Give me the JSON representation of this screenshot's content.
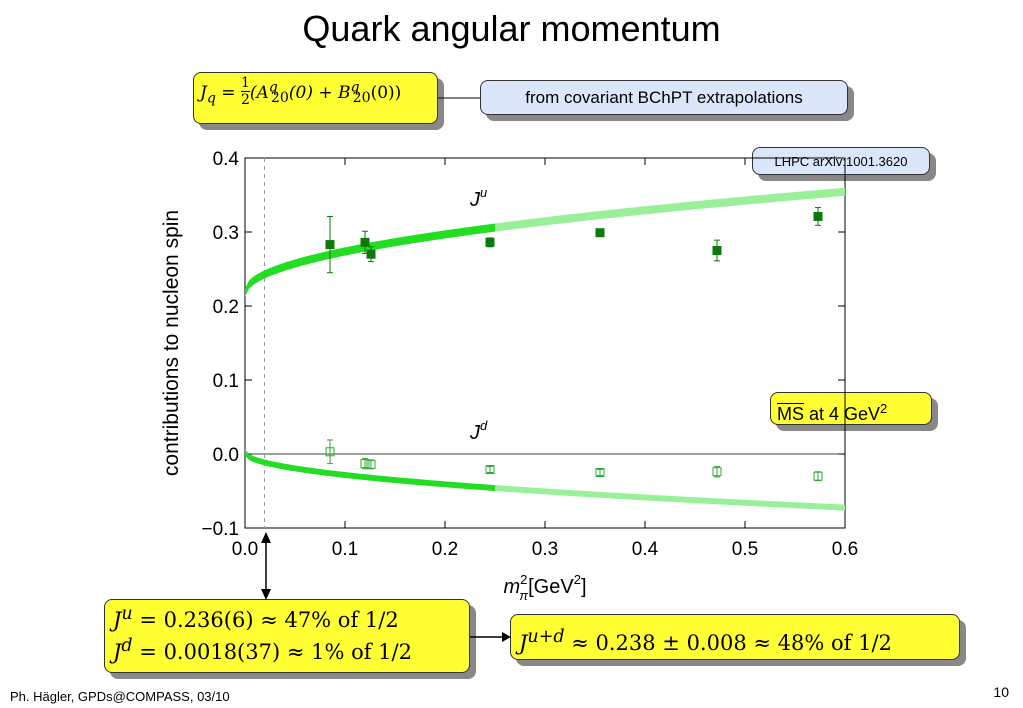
{
  "slide": {
    "title": "Quark angular momentum",
    "footer": "Ph. Hägler, GPDs@COMPASS, 03/10",
    "page_number": "10"
  },
  "boxes": {
    "formula_lhs": "J",
    "formula_sub": "q",
    "formula_eq": " = ",
    "formula_num": "1",
    "formula_den": "2",
    "formula_body": "(A",
    "formula_a_sup": "q",
    "formula_a_sub": "20",
    "formula_mid": "(0) + B",
    "formula_b_sup": "q",
    "formula_b_sub": "20",
    "formula_end": "(0))",
    "covariant": "from covariant BChPT extrapolations",
    "lhpc": "LHPC arXiv:1001.3620",
    "msbar_ms": "MS",
    "msbar_rest": " at 4 GeV",
    "msbar_sup": "2",
    "ju_result_lhs": "J",
    "ju_result_sup": "u",
    "ju_result_rhs": " = 0.236(6) ≈ 47% of 1/2",
    "jd_result_lhs": "J",
    "jd_result_sup": "d",
    "jd_result_rhs": " = 0.0018(37) ≈ 1% of 1/2",
    "jud_lhs": "J",
    "jud_sup": "u+d",
    "jud_rhs": " ≈ 0.238 ± 0.008 ≈ 48% of 1/2"
  },
  "colors": {
    "bright_band": "#22dd22",
    "light_band": "#99f099",
    "filled_marker": "#0a7a0a",
    "open_marker": "#2fa82f",
    "highlight": "#ffff33",
    "info_box": "#dbe6fb"
  },
  "chart_data": {
    "type": "scatter",
    "xlim": [
      0.0,
      0.6
    ],
    "ylim": [
      -0.1,
      0.4
    ],
    "x_ticks": [
      "0.0",
      "0.1",
      "0.2",
      "0.3",
      "0.4",
      "0.5",
      "0.6"
    ],
    "y_ticks": [
      "0.4",
      "0.3",
      "0.2",
      "0.1",
      "0.0",
      "−0.1"
    ],
    "ylabel": "contributions to nucleon spin",
    "xlabel_main": "m",
    "xlabel_sup": "2",
    "xlabel_sub": "π",
    "xlabel_unit": "[GeV",
    "xlabel_unit_sup": "2",
    "xlabel_close": "]",
    "physical_point_x": 0.0195,
    "series": [
      {
        "name": "J",
        "name_sup": "u",
        "marker": "filled-square",
        "points": [
          {
            "x": 0.085,
            "y": 0.283,
            "err": 0.038
          },
          {
            "x": 0.12,
            "y": 0.286,
            "err": 0.015
          },
          {
            "x": 0.126,
            "y": 0.27,
            "err": 0.01
          },
          {
            "x": 0.245,
            "y": 0.286,
            "err": 0.006
          },
          {
            "x": 0.355,
            "y": 0.299,
            "err": 0.005
          },
          {
            "x": 0.472,
            "y": 0.275,
            "err": 0.014
          },
          {
            "x": 0.573,
            "y": 0.321,
            "err": 0.012
          }
        ],
        "band": {
          "start": 0.218,
          "coef": 0.176,
          "half_width": 0.0055,
          "fit_max": 0.25
        }
      },
      {
        "name": "J",
        "name_sup": "d",
        "marker": "open-square",
        "points": [
          {
            "x": 0.085,
            "y": 0.003,
            "err": 0.016
          },
          {
            "x": 0.12,
            "y": -0.013,
            "err": 0.007
          },
          {
            "x": 0.126,
            "y": -0.014,
            "err": 0.006
          },
          {
            "x": 0.245,
            "y": -0.021,
            "err": 0.004
          },
          {
            "x": 0.355,
            "y": -0.025,
            "err": 0.004
          },
          {
            "x": 0.472,
            "y": -0.024,
            "err": 0.007
          },
          {
            "x": 0.573,
            "y": -0.03,
            "err": 0.006
          }
        ],
        "band": {
          "start": 0.002,
          "coef": -0.096,
          "half_width": 0.004,
          "fit_max": 0.25
        }
      }
    ]
  }
}
